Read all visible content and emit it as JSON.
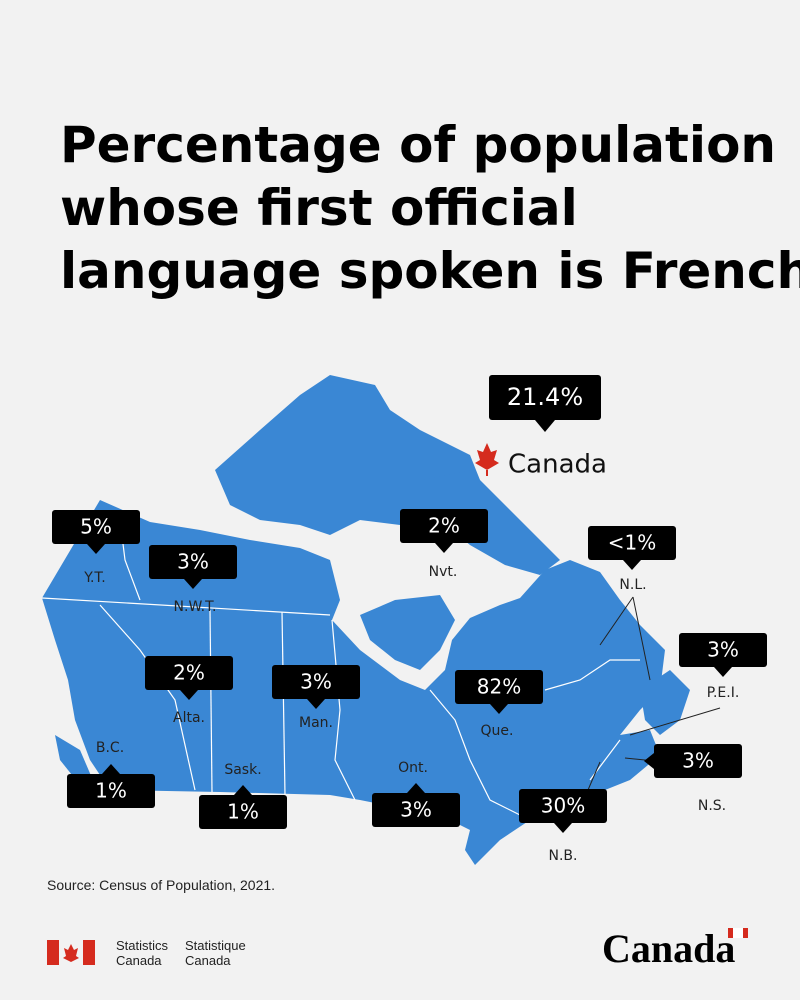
{
  "title": [
    "Percentage of population",
    "whose first official",
    "language spoken is French"
  ],
  "canada": {
    "label": "21.4%",
    "name": "Canada"
  },
  "regions": [
    {
      "name": "Y.T.",
      "label": "5%"
    },
    {
      "name": "N.W.T.",
      "label": "3%"
    },
    {
      "name": "Nvt.",
      "label": "2%"
    },
    {
      "name": "N.L.",
      "label": "<1%"
    },
    {
      "name": "P.E.I.",
      "label": "3%"
    },
    {
      "name": "Alta.",
      "label": "2%"
    },
    {
      "name": "Man.",
      "label": "3%"
    },
    {
      "name": "Que.",
      "label": "82%"
    },
    {
      "name": "B.C.",
      "label": "1%"
    },
    {
      "name": "Sask.",
      "label": "1%"
    },
    {
      "name": "Ont.",
      "label": "3%"
    },
    {
      "name": "N.B.",
      "label": "30%"
    },
    {
      "name": "N.S.",
      "label": "3%"
    }
  ],
  "source": "Source: Census of Population, 2021.",
  "footer": {
    "en_1": "Statistics",
    "en_2": "Canada",
    "fr_1": "Statistique",
    "fr_2": "Canada",
    "wordmark": "Canada"
  }
}
